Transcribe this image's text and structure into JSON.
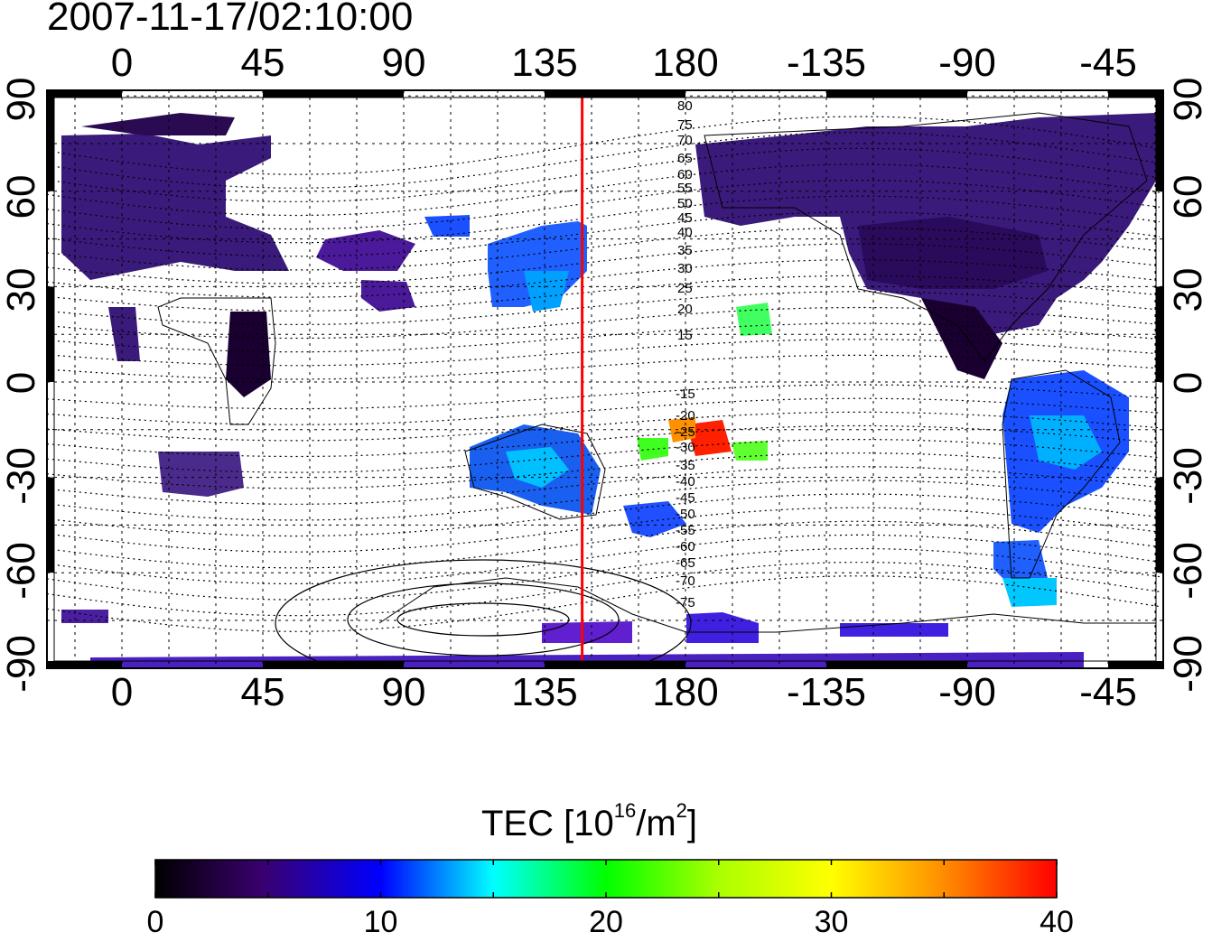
{
  "title": "2007-11-17/02:10:00",
  "map": {
    "top_lon_ticks": [
      "0",
      "45",
      "90",
      "135",
      "180",
      "-135",
      "-90",
      "-45"
    ],
    "bottom_lon_ticks": [
      "0",
      "45",
      "90",
      "135",
      "180",
      "-135",
      "-90",
      "-45"
    ],
    "left_lat_ticks": [
      "90",
      "60",
      "30",
      "0",
      "-30",
      "-60",
      "-90"
    ],
    "right_lat_ticks": [
      "90",
      "60",
      "30",
      "0",
      "-30",
      "-60",
      "-90"
    ],
    "contour_labels_north": [
      "80",
      "75",
      "70",
      "65",
      "60",
      "55",
      "50",
      "45",
      "40",
      "35",
      "30",
      "25",
      "20",
      "15"
    ],
    "contour_labels_south": [
      "-15",
      "-20",
      "-25",
      "-30",
      "-35",
      "-40",
      "-45",
      "-50",
      "-55",
      "-60",
      "-65",
      "-70",
      "-75"
    ],
    "reference_line_lon": 147,
    "reference_line_color": "#ff0000"
  },
  "colorbar": {
    "label_main": "TEC  [10",
    "label_sup1": "16",
    "label_mid": "/m",
    "label_sup2": "2",
    "label_end": "]",
    "min": 0,
    "max": 40,
    "ticks": [
      "0",
      "10",
      "20",
      "30",
      "40"
    ],
    "colors": [
      "#000000",
      "#4b0082",
      "#0000ff",
      "#00ffff",
      "#00ff00",
      "#ffff00",
      "#ff8c00",
      "#ff0000"
    ]
  }
}
